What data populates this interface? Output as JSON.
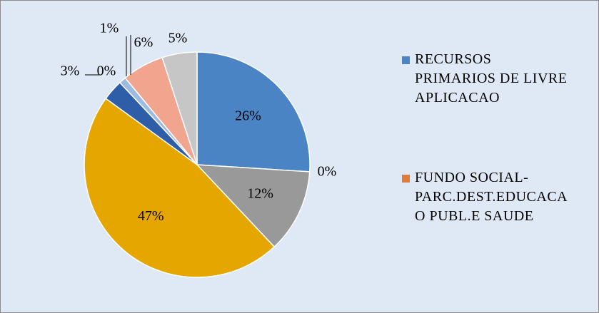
{
  "chart_data": {
    "type": "pie",
    "categories": [
      "RECURSOS PRIMARIOS DE LIVRE APLICACAO",
      "FUNDO SOCIAL-PARC.DEST.EDUCACAO PUBL.E SAUDE",
      null,
      null,
      null,
      null,
      null,
      null,
      null
    ],
    "values": [
      26,
      0,
      12,
      47,
      3,
      0,
      1,
      6,
      5
    ],
    "value_labels": [
      "26%",
      "0%",
      "12%",
      "47%",
      "3%",
      "0%",
      "1%",
      "6%",
      "5%"
    ],
    "colors": [
      "#4a84c4",
      "#e07b39",
      "#999999",
      "#e5a600",
      "#2f5ea9",
      "#6f9bd3",
      "#9dbbe0",
      "#f2a58e",
      "#c6c6c6"
    ],
    "legend": "right"
  }
}
